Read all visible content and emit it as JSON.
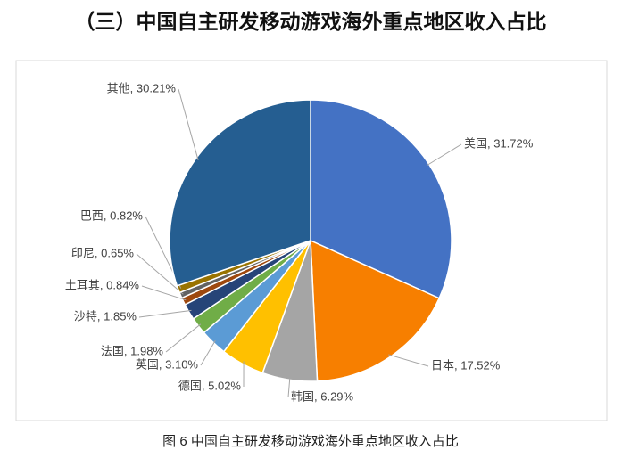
{
  "chart_data": {
    "type": "pie",
    "title": "（三）中国自主研发移动游戏海外重点地区收入占比",
    "caption": "图 6 中国自主研发移动游戏海外重点地区收入占比",
    "values": [
      31.72,
      17.52,
      6.29,
      5.02,
      3.1,
      1.98,
      1.85,
      0.84,
      0.65,
      0.82,
      30.21
    ],
    "value_labels": [
      "美国, 31.72%",
      "日本, 17.52%",
      "韩国, 6.29%",
      "德国, 5.02%",
      "英国, 3.10%",
      "法国, 1.98%",
      "沙特, 1.85%",
      "土耳其, 0.84%",
      "印尼, 0.65%",
      "巴西, 0.82%",
      "其他, 30.21%"
    ],
    "colors": [
      "#4472c4",
      "#f77f00",
      "#a5a5a5",
      "#ffc000",
      "#5b9bd5",
      "#70ad47",
      "#264478",
      "#9e480e",
      "#636363",
      "#997300",
      "#255e91"
    ]
  }
}
